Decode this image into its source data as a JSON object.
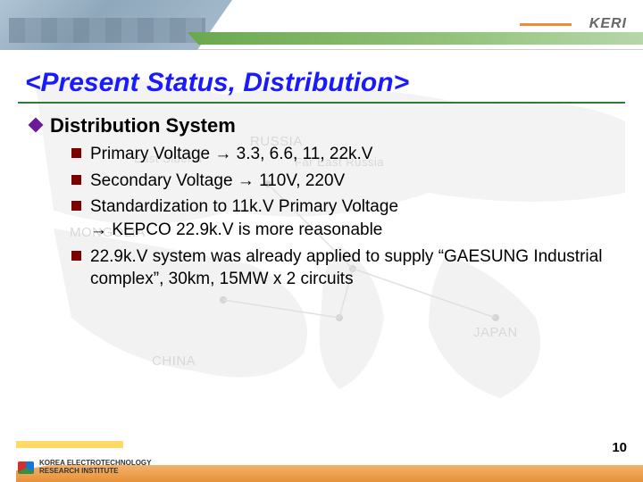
{
  "header": {
    "brand": "KERI",
    "accent_orange": "#e69138",
    "accent_green_start": "#6aa84f",
    "accent_green_end": "#b6d7a8"
  },
  "title": {
    "text": "<Present Status, Distribution>",
    "color": "#1a1aff",
    "fontsize": 30,
    "underline_color": "#2e7d32"
  },
  "map_labels": {
    "russia": "RUSSIA",
    "east_siberia": "East Siberia",
    "far_east_russia": "Far East Russia",
    "mongolia": "MONGOLIA",
    "china": "CHINA",
    "japan": "JAPAN"
  },
  "section": {
    "bullet_marker_color": "#6a1b9a",
    "sub_marker_color": "#7b0000",
    "heading": "Distribution System",
    "heading_fontsize": 22,
    "item_fontsize": 19,
    "items": [
      "Primary Voltage → 3.3, 6.6, 11, 22k.V",
      "Secondary Voltage → 110V, 220V",
      "Standardization to 11k.V Primary Voltage\n→ KEPCO 22.9k.V is more reasonable",
      "22.9k.V system was already applied to supply “GAESUNG Industrial complex”, 30km, 15MW x 2 circuits"
    ]
  },
  "footer": {
    "org_line1": "KOREA ELECTROTECHNOLOGY",
    "org_line2": "RESEARCH INSTITUTE",
    "page_number": "10",
    "yellow": "#ffd966",
    "orange": "#e69138"
  }
}
